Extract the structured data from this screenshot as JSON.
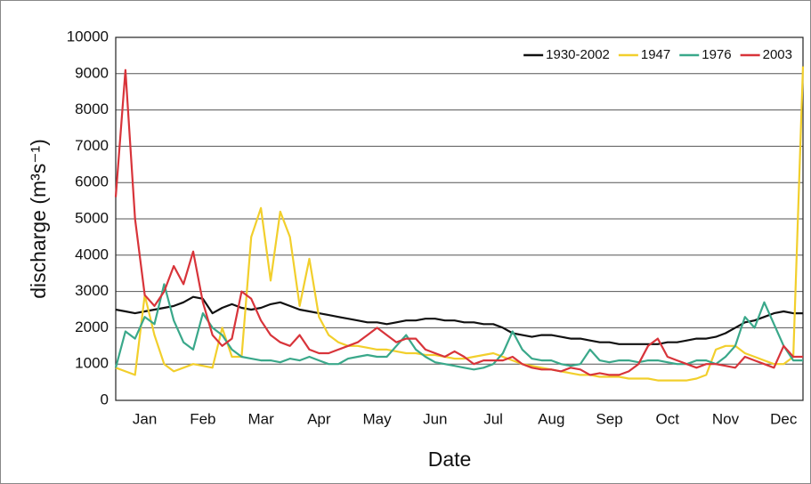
{
  "chart_data": {
    "type": "line",
    "ylabel": "discharge (m³s⁻¹)",
    "xlabel": "Date",
    "categories": [
      null,
      null,
      null,
      "Jan",
      null,
      null,
      null,
      null,
      null,
      "Feb",
      null,
      null,
      null,
      null,
      null,
      "Mar",
      null,
      null,
      null,
      null,
      null,
      "Apr",
      null,
      null,
      null,
      null,
      null,
      "May",
      null,
      null,
      null,
      null,
      null,
      "Jun",
      null,
      null,
      null,
      null,
      null,
      "Jul",
      null,
      null,
      null,
      null,
      null,
      "Aug",
      null,
      null,
      null,
      null,
      null,
      "Sep",
      null,
      null,
      null,
      null,
      null,
      "Oct",
      null,
      null,
      null,
      null,
      null,
      "Nov",
      null,
      null,
      null,
      null,
      null,
      "Dec",
      null,
      null
    ],
    "series": [
      {
        "name": "1930-2002",
        "color": "#111111",
        "values": [
          2500,
          2450,
          2400,
          2450,
          2500,
          2550,
          2600,
          2700,
          2850,
          2800,
          2400,
          2550,
          2650,
          2550,
          2500,
          2550,
          2650,
          2700,
          2600,
          2500,
          2450,
          2400,
          2350,
          2300,
          2250,
          2200,
          2150,
          2150,
          2100,
          2150,
          2200,
          2200,
          2250,
          2250,
          2200,
          2200,
          2150,
          2150,
          2100,
          2100,
          2000,
          1850,
          1800,
          1750,
          1800,
          1800,
          1750,
          1700,
          1700,
          1650,
          1600,
          1600,
          1550,
          1550,
          1550,
          1550,
          1550,
          1600,
          1600,
          1650,
          1700,
          1700,
          1750,
          1850,
          2000,
          2150,
          2200,
          2300,
          2400,
          2450,
          2400,
          2400
        ]
      },
      {
        "name": "1947",
        "color": "#f2cf2c",
        "values": [
          900,
          800,
          700,
          2900,
          1800,
          1000,
          800,
          900,
          1000,
          950,
          900,
          2000,
          1200,
          1200,
          4500,
          5300,
          3300,
          5200,
          4500,
          2600,
          3900,
          2300,
          1800,
          1600,
          1500,
          1500,
          1450,
          1400,
          1400,
          1350,
          1300,
          1300,
          1250,
          1250,
          1200,
          1150,
          1150,
          1200,
          1250,
          1300,
          1200,
          1100,
          1000,
          950,
          900,
          850,
          800,
          750,
          700,
          700,
          650,
          650,
          650,
          600,
          600,
          600,
          550,
          550,
          550,
          550,
          600,
          700,
          1400,
          1500,
          1500,
          1300,
          1200,
          1100,
          1000,
          1000,
          1200,
          9200
        ]
      },
      {
        "name": "1976",
        "color": "#3aa88a",
        "values": [
          900,
          1900,
          1700,
          2300,
          2100,
          3200,
          2200,
          1600,
          1400,
          2400,
          2000,
          1800,
          1400,
          1200,
          1150,
          1100,
          1100,
          1050,
          1150,
          1100,
          1200,
          1100,
          1000,
          1000,
          1150,
          1200,
          1250,
          1200,
          1200,
          1500,
          1800,
          1400,
          1200,
          1050,
          1000,
          950,
          900,
          850,
          900,
          1000,
          1300,
          1900,
          1400,
          1150,
          1100,
          1100,
          1000,
          950,
          1000,
          1400,
          1100,
          1050,
          1100,
          1100,
          1050,
          1100,
          1100,
          1050,
          1000,
          1000,
          1100,
          1100,
          1000,
          1200,
          1500,
          2300,
          2000,
          2700,
          2100,
          1500,
          1100,
          1100
        ]
      },
      {
        "name": "2003",
        "color": "#d8343a",
        "values": [
          5600,
          9100,
          5000,
          2900,
          2600,
          3000,
          3700,
          3200,
          4100,
          2700,
          1800,
          1500,
          1700,
          3000,
          2800,
          2200,
          1800,
          1600,
          1500,
          1800,
          1400,
          1300,
          1300,
          1400,
          1500,
          1600,
          1800,
          2000,
          1800,
          1600,
          1700,
          1700,
          1400,
          1300,
          1200,
          1350,
          1200,
          1000,
          1100,
          1100,
          1100,
          1200,
          1000,
          900,
          850,
          850,
          800,
          900,
          850,
          700,
          750,
          700,
          700,
          800,
          1000,
          1500,
          1700,
          1200,
          1100,
          1000,
          900,
          1000,
          1000,
          950,
          900,
          1200,
          1100,
          1000,
          900,
          1500,
          1200,
          1200
        ]
      }
    ],
    "ylim": [
      0,
      10000
    ],
    "yticks": [
      0,
      1000,
      2000,
      3000,
      4000,
      5000,
      6000,
      7000,
      8000,
      9000,
      10000
    ],
    "grid": true,
    "legend": "upper right"
  }
}
